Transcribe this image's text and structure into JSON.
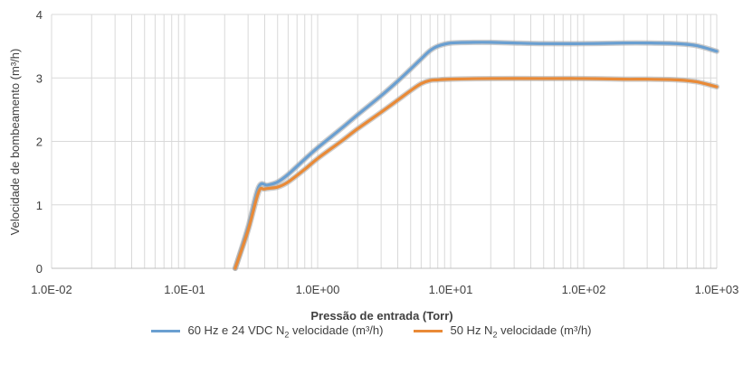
{
  "chart_data": {
    "type": "line",
    "title": "",
    "xlabel": "Pressão de entrada (Torr)",
    "ylabel": "Velocidade de bombeamento (m³/h)",
    "xscale": "log",
    "xlim": [
      0.01,
      1000
    ],
    "ylim": [
      0,
      4
    ],
    "xticks": [
      "1.0E-02",
      "1.0E-01",
      "1.0E+00",
      "1.0E+01",
      "1.0E+02",
      "1.0E+03"
    ],
    "yticks": [
      "0",
      "1",
      "2",
      "3",
      "4"
    ],
    "grid": "vertical minor/major log gridlines, horizontal major",
    "legend_position": "bottom",
    "series": [
      {
        "name_main": "60 Hz e 24 VDC N",
        "name_sub": "2",
        "name_tail": " velocidade (m³/h)",
        "color": "#6a9fd1",
        "x": [
          0.24,
          0.3,
          0.36,
          0.42,
          0.5,
          0.6,
          0.8,
          1.0,
          1.5,
          2,
          3,
          4,
          5,
          6,
          7,
          8,
          10,
          15,
          20,
          30,
          50,
          100,
          200,
          300,
          500,
          700,
          1000
        ],
        "y": [
          0.0,
          0.65,
          1.28,
          1.31,
          1.36,
          1.48,
          1.72,
          1.9,
          2.2,
          2.42,
          2.72,
          2.95,
          3.14,
          3.3,
          3.43,
          3.5,
          3.55,
          3.56,
          3.56,
          3.55,
          3.54,
          3.54,
          3.55,
          3.55,
          3.54,
          3.51,
          3.42
        ]
      },
      {
        "name_main": "50 Hz N",
        "name_sub": "2",
        "name_tail": " velocidade (m³/h)",
        "color": "#e98a37",
        "x": [
          0.24,
          0.3,
          0.36,
          0.4,
          0.5,
          0.6,
          0.8,
          1.0,
          1.5,
          2,
          3,
          4,
          5,
          6,
          7,
          8,
          10,
          20,
          50,
          100,
          200,
          300,
          500,
          700,
          1000
        ],
        "y": [
          0.0,
          0.6,
          1.2,
          1.25,
          1.28,
          1.36,
          1.56,
          1.73,
          2.0,
          2.2,
          2.46,
          2.65,
          2.8,
          2.91,
          2.96,
          2.97,
          2.98,
          2.99,
          2.99,
          2.99,
          2.98,
          2.98,
          2.97,
          2.94,
          2.86
        ]
      }
    ]
  }
}
